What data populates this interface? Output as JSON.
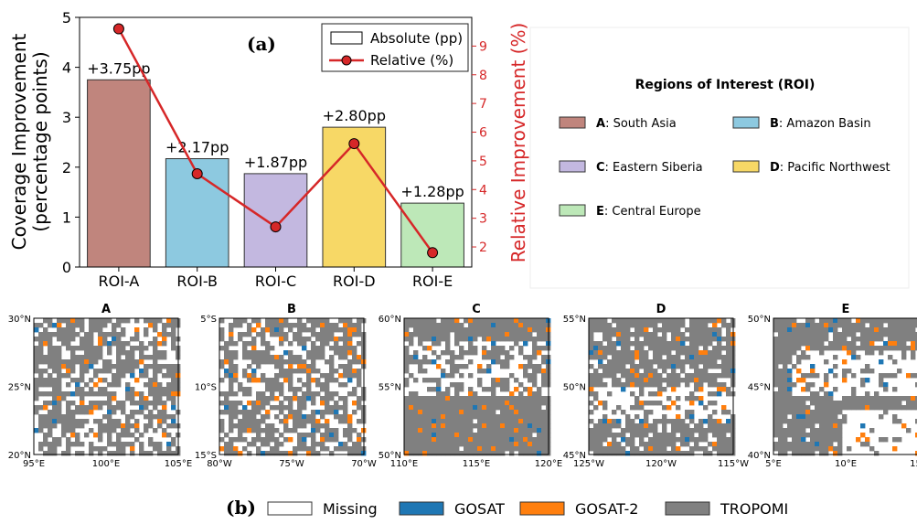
{
  "panel_a_label": "(a)",
  "panel_b_label": "(b)",
  "chart_data": {
    "type": "bar",
    "categories": [
      "ROI-A",
      "ROI-B",
      "ROI-C",
      "ROI-D",
      "ROI-E"
    ],
    "ylabel_lines": [
      "Coverage Improvement",
      "(percentage points)"
    ],
    "y2label": "Relative Improvement (%)",
    "ylim": [
      0,
      5
    ],
    "yticks": [
      0,
      1,
      2,
      3,
      4,
      5
    ],
    "y2lim": [
      1.3,
      10.0
    ],
    "y2ticks": [
      2,
      3,
      4,
      5,
      6,
      7,
      8,
      9
    ],
    "series": [
      {
        "name": "Absolute (pp)",
        "type": "bar",
        "values": [
          3.75,
          2.17,
          1.87,
          2.8,
          1.28
        ],
        "labels": [
          "+3.75pp",
          "+2.17pp",
          "+1.87pp",
          "+2.80pp",
          "+1.28pp"
        ],
        "colors": [
          "#c0857d",
          "#8dc9e0",
          "#c3b8e0",
          "#f7d866",
          "#bde8b8"
        ]
      },
      {
        "name": "Relative (%)",
        "type": "line",
        "axis": "right",
        "values": [
          9.6,
          4.55,
          2.7,
          5.6,
          1.8
        ],
        "color": "#d62728"
      }
    ],
    "legend_position": "top-right"
  },
  "roi_legend": {
    "title": "Regions of Interest (ROI)",
    "items": [
      {
        "key": "A",
        "name": ": South Asia",
        "color": "#c0857d"
      },
      {
        "key": "B",
        "name": ": Amazon Basin",
        "color": "#8dc9e0"
      },
      {
        "key": "C",
        "name": ": Eastern Siberia",
        "color": "#c3b8e0"
      },
      {
        "key": "D",
        "name": ": Pacific Northwest",
        "color": "#f7d866"
      },
      {
        "key": "E",
        "name": ": Central Europe",
        "color": "#bde8b8"
      }
    ]
  },
  "maps": [
    {
      "title": "A",
      "lat_ticks": [
        "30°N",
        "25°N",
        "20°N"
      ],
      "lon_ticks": [
        "95°E",
        "100°E",
        "105°E"
      ],
      "pattern": "mixed"
    },
    {
      "title": "B",
      "lat_ticks": [
        "5°S",
        "10°S",
        "15°S"
      ],
      "lon_ticks": [
        "80°W",
        "75°W",
        "70°W"
      ],
      "pattern": "mixed"
    },
    {
      "title": "C",
      "lat_ticks": [
        "60°N",
        "55°N",
        "50°N"
      ],
      "lon_ticks": [
        "110°E",
        "115°E",
        "120°E"
      ],
      "pattern": "mostly-tropomi"
    },
    {
      "title": "D",
      "lat_ticks": [
        "55°N",
        "50°N",
        "45°N"
      ],
      "lon_ticks": [
        "125°W",
        "120°W",
        "115°W"
      ],
      "pattern": "band"
    },
    {
      "title": "E",
      "lat_ticks": [
        "50°N",
        "45°N",
        "40°N"
      ],
      "lon_ticks": [
        "5°E",
        "10°E",
        "15°"
      ],
      "pattern": "alps"
    }
  ],
  "map_legend": [
    {
      "label": "Missing",
      "color": "#ffffff"
    },
    {
      "label": "GOSAT",
      "color": "#1f77b4"
    },
    {
      "label": "GOSAT-2",
      "color": "#ff7f0e"
    },
    {
      "label": "TROPOMI",
      "color": "#808080"
    }
  ]
}
